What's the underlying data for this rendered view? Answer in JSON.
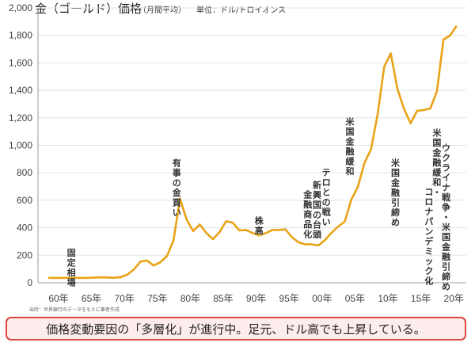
{
  "chart_data": {
    "type": "line",
    "title": "金（ゴールド）価格",
    "subtitle": "（月間平均）",
    "unit_label": "単位：ドル/トロイオンス",
    "ylim": [
      0,
      2000
    ],
    "xlim": [
      1960,
      2023
    ],
    "y_ticks": [
      "0",
      "200",
      "400",
      "600",
      "800",
      "1,000",
      "1,200",
      "1,400",
      "1,600",
      "1,800",
      "2,000"
    ],
    "x_ticks": [
      "60年",
      "65年",
      "70年",
      "75年",
      "80年",
      "85年",
      "90年",
      "95年",
      "00年",
      "05年",
      "10年",
      "15年",
      "20年"
    ],
    "grid": true,
    "line_color": "#e8a317",
    "series": [
      {
        "x": [
          1960,
          1962,
          1964,
          1966,
          1968,
          1970,
          1971,
          1972,
          1973,
          1974,
          1975,
          1976,
          1977,
          1978,
          1979,
          1980,
          1981,
          1982,
          1983,
          1984,
          1985,
          1986,
          1987,
          1988,
          1989,
          1990,
          1991,
          1992,
          1993,
          1994,
          1995,
          1996,
          1997,
          1998,
          1999,
          2000,
          2001,
          2002,
          2003,
          2004,
          2005,
          2006,
          2007,
          2008,
          2009,
          2010,
          2011,
          2012,
          2013,
          2014,
          2015,
          2016,
          2017,
          2018,
          2019,
          2020,
          2021,
          2022
        ],
        "values": [
          35,
          35,
          35,
          35,
          39,
          36,
          41,
          58,
          97,
          154,
          161,
          125,
          148,
          193,
          306,
          612,
          460,
          376,
          424,
          361,
          317,
          368,
          447,
          437,
          381,
          384,
          362,
          344,
          360,
          384,
          384,
          388,
          331,
          294,
          279,
          279,
          271,
          310,
          363,
          409,
          444,
          604,
          697,
          872,
          972,
          1225,
          1572,
          1669,
          1411,
          1266,
          1160,
          1251,
          1257,
          1268,
          1393,
          1770,
          1799,
          1870
        ]
      }
    ],
    "annotations": [
      {
        "text": "固定相場",
        "x": 1963.5,
        "y": 195
      },
      {
        "text": "有事の金買い",
        "x": 1979.5,
        "y": 850
      },
      {
        "text": "株高",
        "x": 1992,
        "y": 430
      },
      {
        "text": "金融商品化",
        "x": 1999.4,
        "y": 620
      },
      {
        "text": "新興国の台頭",
        "x": 2000.8,
        "y": 690
      },
      {
        "text": "テロとの戦い",
        "x": 2002.2,
        "y": 780
      },
      {
        "text": "米国金融緩和",
        "x": 2005.8,
        "y": 1150
      },
      {
        "text": "米国金融引締め",
        "x": 2012.7,
        "y": 850
      },
      {
        "text": "米国金融緩和・",
        "x": 2019.0,
        "y": 1070
      },
      {
        "text": "コロナパンデミック化",
        "x": 2017.8,
        "y": 640
      },
      {
        "text": "ウクライナ戦争・米国金融引締め",
        "x": 2020.4,
        "y": 960
      }
    ],
    "source": "出所：世界銀行のデータをもとに筆者作成"
  },
  "footer": {
    "text": "価格変動要因の「多層化」が進行中。足元、ドル高でも上昇している。"
  }
}
